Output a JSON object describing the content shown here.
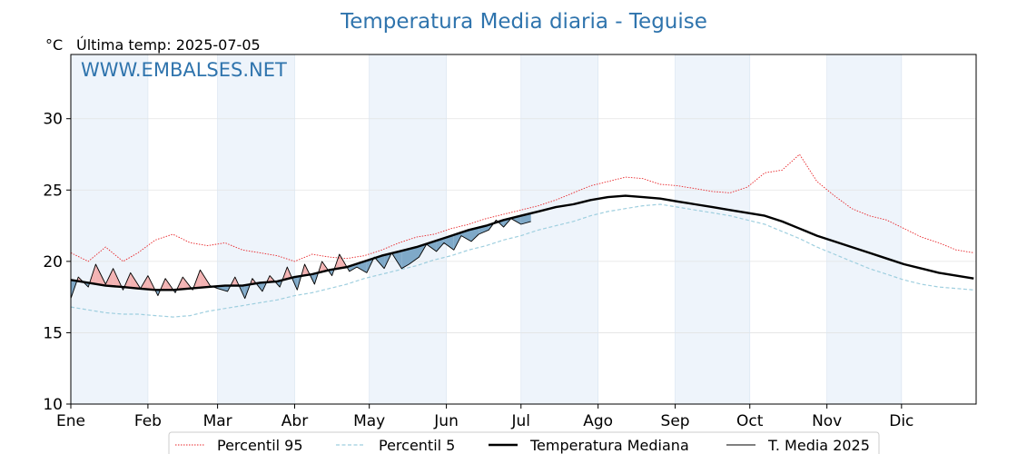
{
  "chart_data": {
    "type": "line",
    "title": "Temperatura Media diaria - Teguise",
    "unit": "°C",
    "subtitle": "Última temp: 2025-07-05",
    "watermark": "WWW.EMBALSES.NET",
    "ylim": [
      10,
      34.5
    ],
    "yticks": [
      10,
      15,
      20,
      25,
      30
    ],
    "months": [
      "Ene",
      "Feb",
      "Mar",
      "Abr",
      "May",
      "Jun",
      "Jul",
      "Ago",
      "Sep",
      "Oct",
      "Nov",
      "Dic"
    ],
    "grid": true,
    "legend_position": "bottom",
    "colors": {
      "title": "#2f74ad",
      "p95": "#e8262a",
      "p5": "#9fcfdf",
      "median": "#000000",
      "current": "#000000",
      "above_fill": "#f3b3b3",
      "below_fill": "#7fa9c8",
      "month_band": "#eef4fb"
    },
    "series": [
      {
        "name": "Percentil 95",
        "style": "dotted",
        "x": [
          1,
          8,
          15,
          22,
          28,
          35,
          42,
          49,
          56,
          63,
          70,
          77,
          84,
          91,
          98,
          105,
          112,
          119,
          126,
          133,
          140,
          147,
          154,
          161,
          168,
          175,
          182,
          189,
          196,
          203,
          210,
          217,
          224,
          231,
          238,
          245,
          252,
          259,
          266,
          273,
          280,
          287,
          294,
          301,
          308,
          315,
          322,
          329,
          336,
          343,
          350,
          357,
          364
        ],
        "values": [
          20.6,
          20.0,
          21.0,
          20.0,
          20.6,
          21.5,
          21.9,
          21.3,
          21.1,
          21.3,
          20.8,
          20.6,
          20.4,
          20.0,
          20.5,
          20.3,
          20.2,
          20.4,
          20.8,
          21.3,
          21.7,
          21.9,
          22.3,
          22.6,
          23.0,
          23.3,
          23.6,
          23.9,
          24.3,
          24.8,
          25.3,
          25.6,
          25.9,
          25.8,
          25.4,
          25.3,
          25.1,
          24.9,
          24.8,
          25.2,
          26.2,
          26.4,
          27.5,
          25.6,
          24.6,
          23.7,
          23.2,
          22.9,
          22.3,
          21.7,
          21.3,
          20.8,
          20.6
        ]
      },
      {
        "name": "Percentil 5",
        "style": "dashed",
        "x": [
          1,
          8,
          15,
          22,
          28,
          35,
          42,
          49,
          56,
          63,
          70,
          77,
          84,
          91,
          98,
          105,
          112,
          119,
          126,
          133,
          140,
          147,
          154,
          161,
          168,
          175,
          182,
          189,
          196,
          203,
          210,
          217,
          224,
          231,
          238,
          245,
          252,
          259,
          266,
          273,
          280,
          287,
          294,
          301,
          308,
          315,
          322,
          329,
          336,
          343,
          350,
          357,
          364
        ],
        "values": [
          16.8,
          16.6,
          16.4,
          16.3,
          16.3,
          16.2,
          16.1,
          16.2,
          16.5,
          16.7,
          16.9,
          17.1,
          17.3,
          17.6,
          17.8,
          18.1,
          18.4,
          18.8,
          19.1,
          19.4,
          19.7,
          20.1,
          20.4,
          20.8,
          21.1,
          21.5,
          21.8,
          22.2,
          22.5,
          22.8,
          23.2,
          23.5,
          23.7,
          23.9,
          24.0,
          23.8,
          23.6,
          23.4,
          23.2,
          22.9,
          22.6,
          22.1,
          21.6,
          21.0,
          20.5,
          20.0,
          19.5,
          19.1,
          18.7,
          18.4,
          18.2,
          18.1,
          18.0
        ]
      },
      {
        "name": "Temperatura Mediana",
        "style": "solid-thick",
        "x": [
          1,
          8,
          15,
          22,
          28,
          35,
          42,
          49,
          56,
          63,
          70,
          77,
          84,
          91,
          98,
          105,
          112,
          119,
          126,
          133,
          140,
          147,
          154,
          161,
          168,
          175,
          182,
          189,
          196,
          203,
          210,
          217,
          224,
          231,
          238,
          245,
          252,
          259,
          266,
          273,
          280,
          287,
          294,
          301,
          308,
          315,
          322,
          329,
          336,
          343,
          350,
          357,
          364
        ],
        "values": [
          18.7,
          18.5,
          18.3,
          18.2,
          18.1,
          18.0,
          18.0,
          18.1,
          18.2,
          18.3,
          18.3,
          18.5,
          18.6,
          18.9,
          19.1,
          19.4,
          19.6,
          20.0,
          20.4,
          20.7,
          21.0,
          21.4,
          21.8,
          22.2,
          22.5,
          22.9,
          23.2,
          23.5,
          23.8,
          24.0,
          24.3,
          24.5,
          24.6,
          24.5,
          24.4,
          24.2,
          24.0,
          23.8,
          23.6,
          23.4,
          23.2,
          22.8,
          22.3,
          21.8,
          21.4,
          21.0,
          20.6,
          20.2,
          19.8,
          19.5,
          19.2,
          19.0,
          18.8
        ]
      },
      {
        "name": "T. Media 2025",
        "style": "solid-thin",
        "x": [
          1,
          4,
          8,
          11,
          15,
          18,
          22,
          25,
          29,
          32,
          36,
          39,
          43,
          46,
          50,
          53,
          57,
          60,
          64,
          67,
          71,
          74,
          78,
          81,
          85,
          88,
          92,
          95,
          99,
          102,
          106,
          109,
          113,
          116,
          120,
          123,
          127,
          130,
          134,
          137,
          141,
          144,
          148,
          151,
          155,
          158,
          162,
          165,
          169,
          172,
          175,
          178,
          182,
          186
        ],
        "values": [
          17.4,
          18.9,
          18.2,
          19.8,
          18.4,
          19.5,
          18.0,
          19.2,
          18.1,
          19.0,
          17.6,
          18.8,
          17.8,
          18.9,
          18.0,
          19.4,
          18.3,
          18.1,
          17.9,
          18.9,
          17.4,
          18.8,
          17.9,
          19.0,
          18.2,
          19.6,
          18.0,
          19.8,
          18.4,
          20.0,
          19.0,
          20.5,
          19.3,
          19.6,
          19.2,
          20.3,
          19.5,
          20.6,
          19.5,
          19.8,
          20.3,
          21.2,
          20.7,
          21.3,
          20.8,
          21.8,
          21.4,
          21.9,
          22.2,
          22.9,
          22.4,
          23.0,
          22.6,
          22.8
        ]
      }
    ]
  }
}
